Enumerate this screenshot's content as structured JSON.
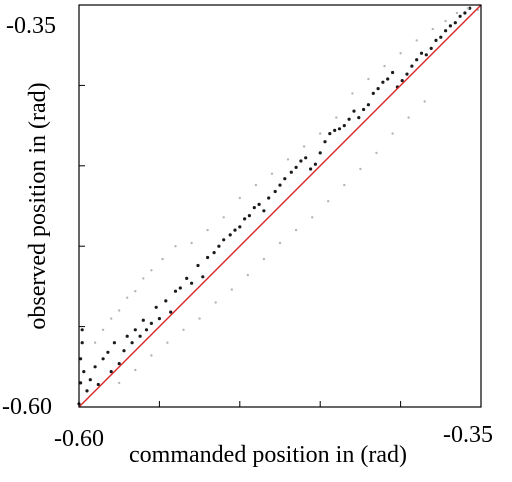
{
  "chart_data": {
    "type": "scatter",
    "title": "",
    "xlabel": "commanded position in (rad)",
    "ylabel": "observed position in (rad)",
    "xlim": [
      -0.6,
      -0.35
    ],
    "ylim": [
      -0.6,
      -0.35
    ],
    "x_tick_labels": [
      "-0.60",
      "-0.35"
    ],
    "y_tick_labels": [
      "-0.35",
      "-0.60"
    ],
    "grid": false,
    "legend": "none",
    "series": [
      {
        "kind": "points",
        "color": "#1a1a1a",
        "points": [
          [
            -0.6,
            -0.598
          ],
          [
            -0.599,
            -0.585
          ],
          [
            -0.599,
            -0.57
          ],
          [
            -0.598,
            -0.56
          ],
          [
            -0.598,
            -0.552
          ],
          [
            -0.597,
            -0.578
          ],
          [
            -0.595,
            -0.59
          ],
          [
            -0.593,
            -0.583
          ],
          [
            -0.59,
            -0.575
          ],
          [
            -0.588,
            -0.586
          ],
          [
            -0.585,
            -0.57
          ],
          [
            -0.582,
            -0.566
          ],
          [
            -0.58,
            -0.578
          ],
          [
            -0.578,
            -0.56
          ],
          [
            -0.575,
            -0.573
          ],
          [
            -0.572,
            -0.565
          ],
          [
            -0.57,
            -0.556
          ],
          [
            -0.567,
            -0.56
          ],
          [
            -0.565,
            -0.552
          ],
          [
            -0.562,
            -0.556
          ],
          [
            -0.56,
            -0.546
          ],
          [
            -0.558,
            -0.552
          ],
          [
            -0.555,
            -0.548
          ],
          [
            -0.552,
            -0.538
          ],
          [
            -0.55,
            -0.545
          ],
          [
            -0.546,
            -0.534
          ],
          [
            -0.543,
            -0.541
          ],
          [
            -0.54,
            -0.528
          ],
          [
            -0.537,
            -0.526
          ],
          [
            -0.533,
            -0.52
          ],
          [
            -0.53,
            -0.523
          ],
          [
            -0.526,
            -0.512
          ],
          [
            -0.523,
            -0.519
          ],
          [
            -0.52,
            -0.507
          ],
          [
            -0.516,
            -0.504
          ],
          [
            -0.513,
            -0.5
          ],
          [
            -0.51,
            -0.496
          ],
          [
            -0.506,
            -0.493
          ],
          [
            -0.503,
            -0.49
          ],
          [
            -0.5,
            -0.488
          ],
          [
            -0.497,
            -0.483
          ],
          [
            -0.494,
            -0.481
          ],
          [
            -0.491,
            -0.476
          ],
          [
            -0.488,
            -0.474
          ],
          [
            -0.485,
            -0.478
          ],
          [
            -0.482,
            -0.47
          ],
          [
            -0.478,
            -0.466
          ],
          [
            -0.475,
            -0.462
          ],
          [
            -0.472,
            -0.458
          ],
          [
            -0.468,
            -0.454
          ],
          [
            -0.465,
            -0.451
          ],
          [
            -0.462,
            -0.447
          ],
          [
            -0.459,
            -0.445
          ],
          [
            -0.456,
            -0.452
          ],
          [
            -0.453,
            -0.449
          ],
          [
            -0.45,
            -0.442
          ],
          [
            -0.447,
            -0.435
          ],
          [
            -0.444,
            -0.43
          ],
          [
            -0.441,
            -0.428
          ],
          [
            -0.438,
            -0.427
          ],
          [
            -0.435,
            -0.425
          ],
          [
            -0.432,
            -0.421
          ],
          [
            -0.429,
            -0.416
          ],
          [
            -0.426,
            -0.42
          ],
          [
            -0.423,
            -0.415
          ],
          [
            -0.42,
            -0.412
          ],
          [
            -0.417,
            -0.405
          ],
          [
            -0.414,
            -0.402
          ],
          [
            -0.411,
            -0.398
          ],
          [
            -0.408,
            -0.396
          ],
          [
            -0.405,
            -0.392
          ],
          [
            -0.402,
            -0.401
          ],
          [
            -0.399,
            -0.397
          ],
          [
            -0.396,
            -0.393
          ],
          [
            -0.393,
            -0.388
          ],
          [
            -0.39,
            -0.384
          ],
          [
            -0.387,
            -0.38
          ],
          [
            -0.384,
            -0.381
          ],
          [
            -0.381,
            -0.377
          ],
          [
            -0.378,
            -0.372
          ],
          [
            -0.375,
            -0.37
          ],
          [
            -0.372,
            -0.366
          ],
          [
            -0.369,
            -0.363
          ],
          [
            -0.366,
            -0.361
          ],
          [
            -0.363,
            -0.357
          ],
          [
            -0.36,
            -0.355
          ],
          [
            -0.357,
            -0.352
          ]
        ]
      },
      {
        "kind": "points",
        "color": "#b5b5b5",
        "points": [
          [
            -0.59,
            -0.56
          ],
          [
            -0.585,
            -0.552
          ],
          [
            -0.58,
            -0.545
          ],
          [
            -0.575,
            -0.54
          ],
          [
            -0.57,
            -0.532
          ],
          [
            -0.565,
            -0.528
          ],
          [
            -0.56,
            -0.52
          ],
          [
            -0.555,
            -0.515
          ],
          [
            -0.548,
            -0.508
          ],
          [
            -0.54,
            -0.5
          ],
          [
            -0.575,
            -0.585
          ],
          [
            -0.565,
            -0.577
          ],
          [
            -0.555,
            -0.568
          ],
          [
            -0.545,
            -0.56
          ],
          [
            -0.535,
            -0.552
          ],
          [
            -0.525,
            -0.545
          ],
          [
            -0.515,
            -0.535
          ],
          [
            -0.505,
            -0.527
          ],
          [
            -0.495,
            -0.518
          ],
          [
            -0.485,
            -0.508
          ],
          [
            -0.53,
            -0.498
          ],
          [
            -0.52,
            -0.49
          ],
          [
            -0.51,
            -0.482
          ],
          [
            -0.5,
            -0.47
          ],
          [
            -0.49,
            -0.462
          ],
          [
            -0.48,
            -0.455
          ],
          [
            -0.47,
            -0.446
          ],
          [
            -0.46,
            -0.438
          ],
          [
            -0.45,
            -0.43
          ],
          [
            -0.44,
            -0.42
          ],
          [
            -0.475,
            -0.498
          ],
          [
            -0.465,
            -0.49
          ],
          [
            -0.455,
            -0.482
          ],
          [
            -0.445,
            -0.472
          ],
          [
            -0.435,
            -0.462
          ],
          [
            -0.425,
            -0.452
          ],
          [
            -0.415,
            -0.442
          ],
          [
            -0.405,
            -0.43
          ],
          [
            -0.395,
            -0.42
          ],
          [
            -0.385,
            -0.41
          ],
          [
            -0.43,
            -0.405
          ],
          [
            -0.42,
            -0.396
          ],
          [
            -0.41,
            -0.388
          ],
          [
            -0.4,
            -0.38
          ],
          [
            -0.39,
            -0.372
          ],
          [
            -0.38,
            -0.365
          ],
          [
            -0.372,
            -0.36
          ],
          [
            -0.365,
            -0.355
          ],
          [
            -0.358,
            -0.352
          ],
          [
            -0.352,
            -0.353
          ]
        ]
      },
      {
        "kind": "line",
        "name": "",
        "color": "#d42a2a",
        "points": [
          [
            -0.6,
            -0.6
          ],
          [
            -0.35,
            -0.35
          ]
        ]
      }
    ]
  }
}
